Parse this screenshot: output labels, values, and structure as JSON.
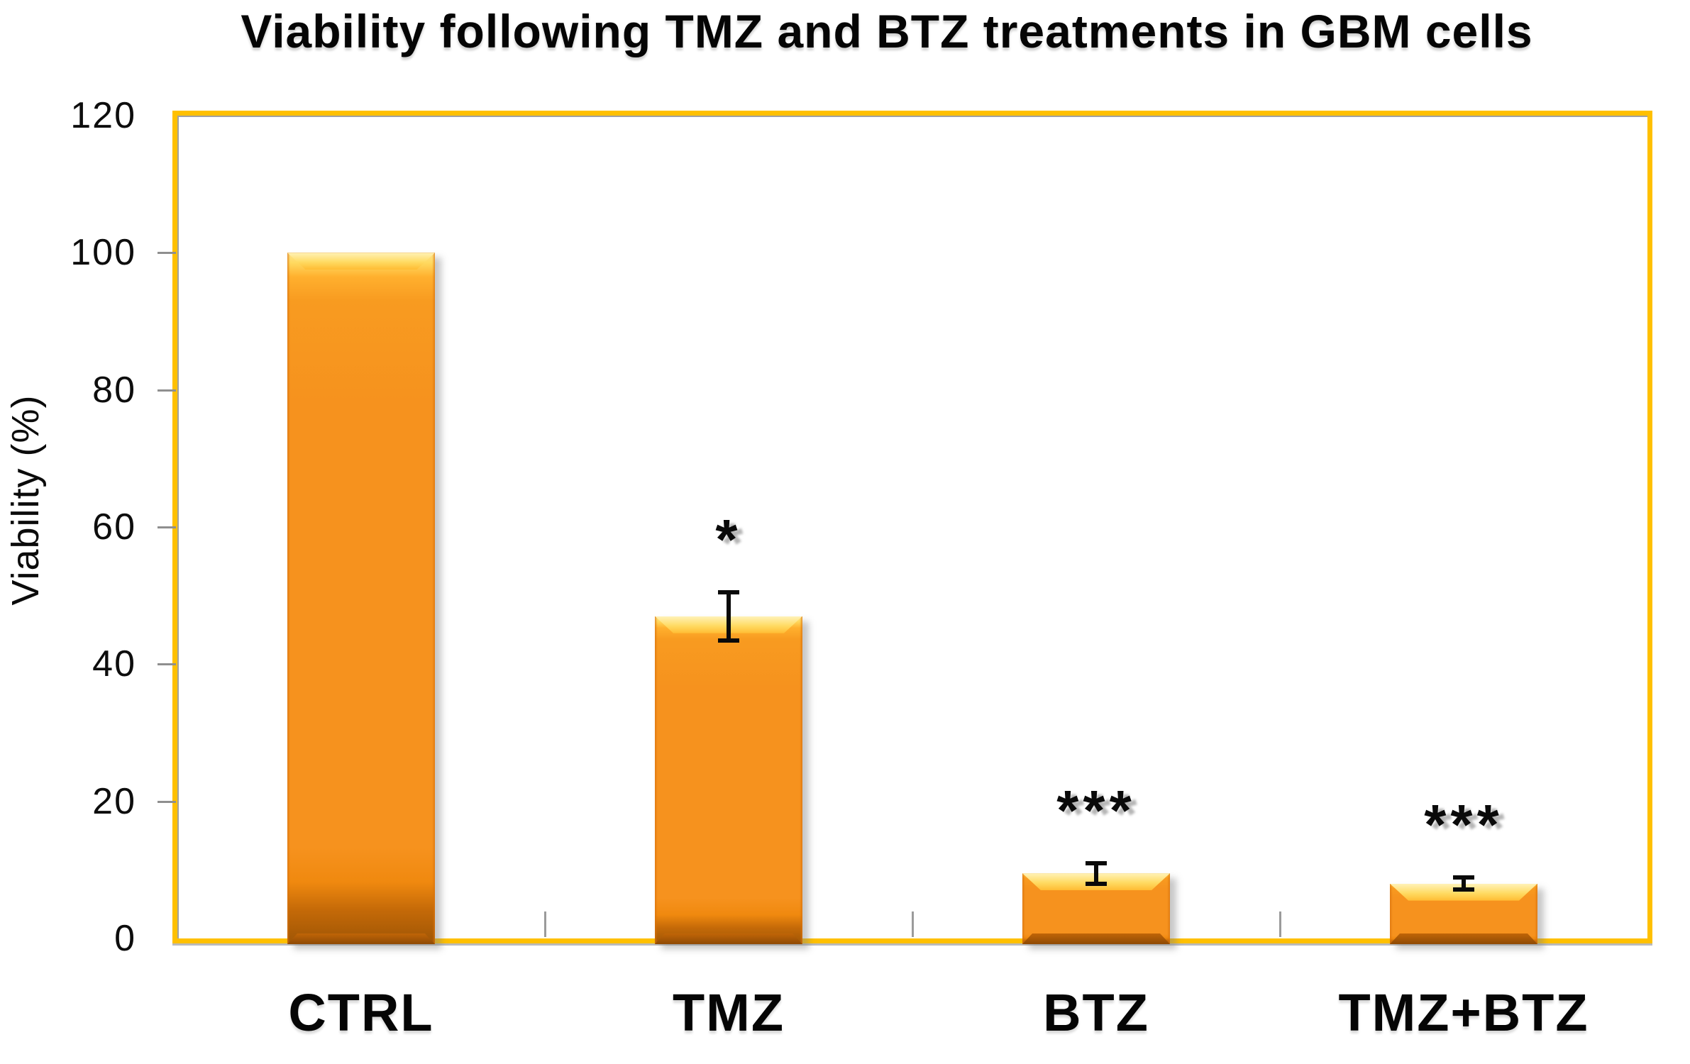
{
  "chart_data": {
    "type": "bar",
    "title": "Viability following TMZ and BTZ treatments in GBM cells",
    "ylabel": "Viability (%)",
    "xlabel": "",
    "categories": [
      "CTRL",
      "TMZ",
      "BTZ",
      "TMZ+BTZ"
    ],
    "values": [
      100,
      47,
      9.5,
      8
    ],
    "errors": [
      0,
      3.5,
      1.5,
      0.9
    ],
    "significance": [
      "",
      "*",
      "***",
      "***"
    ],
    "ylim": [
      0,
      120
    ],
    "yticks": [
      0,
      20,
      40,
      60,
      80,
      100,
      120
    ],
    "grid": false,
    "legend_position": "none",
    "colors": {
      "bar_main": "#F6921E",
      "bar_highlight": "#FFDB63",
      "bar_shade": "#9E5505",
      "plot_border": "#FFC000",
      "tick_gray": "#8F8F8F",
      "error_bar": "#0A0A0A",
      "text": "#050505",
      "background": "#FFFFFF"
    }
  }
}
